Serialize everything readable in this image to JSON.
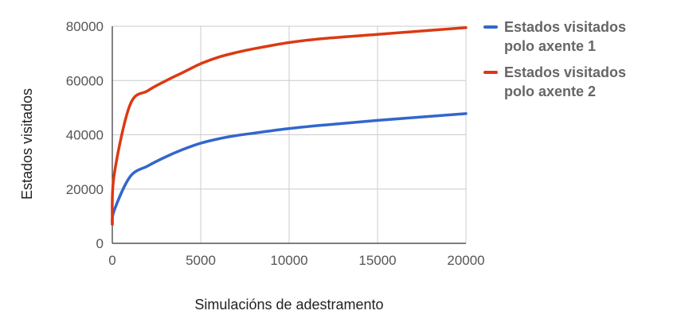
{
  "chart_data": {
    "type": "line",
    "title": "",
    "xlabel": "Simulacións de adestramento",
    "ylabel": "Estados visitados",
    "xlim": [
      0,
      20000
    ],
    "ylim": [
      0,
      80000
    ],
    "x_ticks": [
      "0",
      "5000",
      "10000",
      "15000",
      "20000"
    ],
    "y_ticks": [
      "0",
      "20000",
      "40000",
      "60000",
      "80000"
    ],
    "grid": true,
    "legend_position": "right",
    "series": [
      {
        "name_lines": [
          "Estados visitados",
          "polo axente 1"
        ],
        "color": "#3366cc",
        "x": [
          0,
          100,
          1000,
          2000,
          3000,
          4000,
          5000,
          6000,
          7000,
          8000,
          10000,
          12000,
          15000,
          20000
        ],
        "y": [
          7000,
          12000,
          24500,
          28500,
          31800,
          34600,
          36900,
          38500,
          39700,
          40600,
          42300,
          43600,
          45300,
          47800
        ]
      },
      {
        "name_lines": [
          "Estados visitados",
          "polo axente 2"
        ],
        "color": "#dc3912",
        "x": [
          0,
          100,
          1000,
          2000,
          3000,
          4000,
          5000,
          6000,
          7000,
          8000,
          10000,
          12000,
          15000,
          20000
        ],
        "y": [
          7000,
          25000,
          51000,
          56200,
          59800,
          63000,
          66200,
          68600,
          70300,
          71700,
          74000,
          75500,
          77000,
          79500
        ]
      }
    ]
  }
}
